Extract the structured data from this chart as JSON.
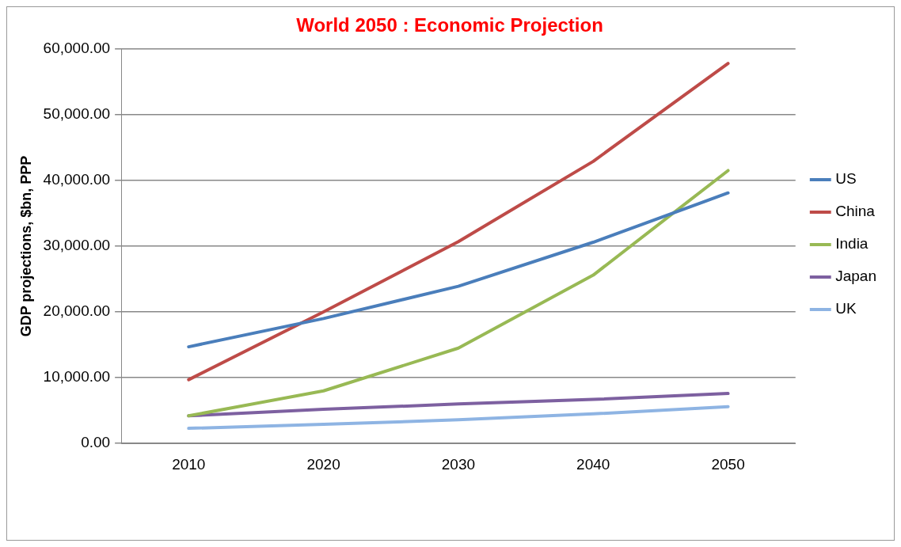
{
  "chart_data": {
    "type": "line",
    "title": "World 2050 : Economic Projection",
    "ylabel": "GDP projections, $bn, PPP",
    "categories": [
      "2010",
      "2020",
      "2030",
      "2040",
      "2050"
    ],
    "series": [
      {
        "name": "US",
        "color": "#4a7ebb",
        "values": [
          14700,
          19000,
          23900,
          30600,
          38100
        ]
      },
      {
        "name": "China",
        "color": "#be4b48",
        "values": [
          9700,
          20000,
          30700,
          42900,
          57800
        ]
      },
      {
        "name": "India",
        "color": "#98b954",
        "values": [
          4200,
          8000,
          14500,
          25600,
          41500
        ]
      },
      {
        "name": "Japan",
        "color": "#7d60a0",
        "values": [
          4200,
          5200,
          6000,
          6700,
          7600
        ]
      },
      {
        "name": "UK",
        "color": "#8eb4e3",
        "values": [
          2300,
          2900,
          3600,
          4500,
          5600
        ]
      }
    ],
    "ylim": [
      0,
      60000
    ],
    "yticks": [
      {
        "value": 0,
        "label": "0.00"
      },
      {
        "value": 10000,
        "label": "10,000.00"
      },
      {
        "value": 20000,
        "label": "20,000.00"
      },
      {
        "value": 30000,
        "label": "30,000.00"
      },
      {
        "value": 40000,
        "label": "40,000.00"
      },
      {
        "value": 50000,
        "label": "50,000.00"
      },
      {
        "value": 60000,
        "label": "60,000.00"
      }
    ],
    "grid": "y",
    "legend": "right",
    "marker": "none",
    "line_style": "solid"
  }
}
